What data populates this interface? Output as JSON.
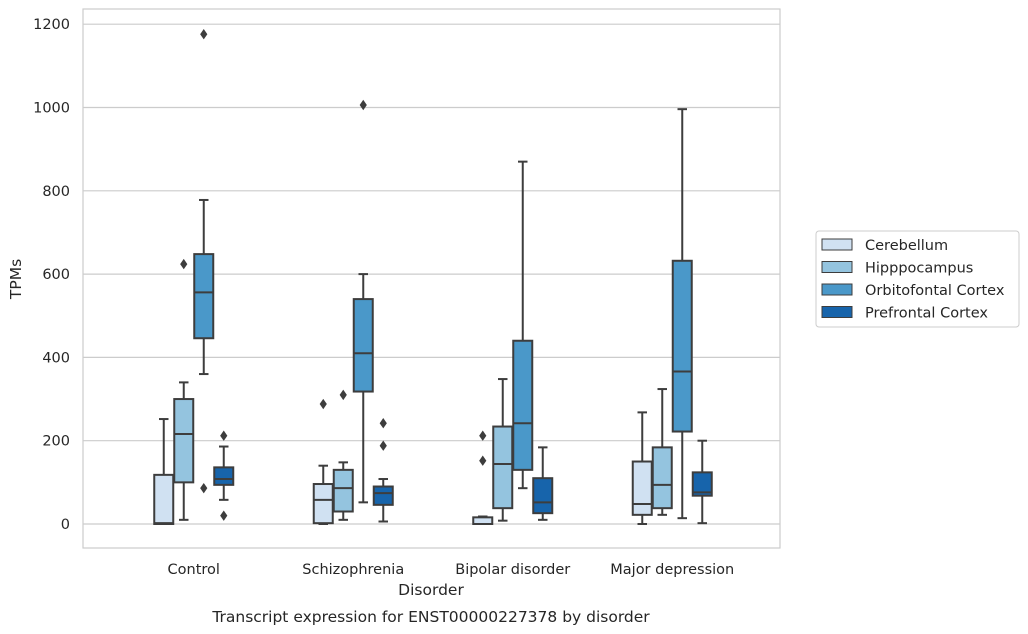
{
  "chart_data": {
    "type": "box",
    "title": "",
    "caption": "Transcript expression for ENST00000227378 by disorder",
    "xlabel": "Disorder",
    "ylabel": "TPMs",
    "ylim": [
      -55,
      1240
    ],
    "yticks": [
      "0",
      "200",
      "400",
      "600",
      "800",
      "1000",
      "1200"
    ],
    "categories": [
      "Control",
      "Schizophrenia",
      "Bipolar disorder",
      "Major depression"
    ],
    "grid": "horizontal",
    "legend_position": "right",
    "series": [
      {
        "name": "Cerebellum",
        "color": "#d0e1f2",
        "boxes": [
          {
            "whisker_low": 0,
            "q1": 0,
            "median": 2,
            "q3": 118,
            "whisker_high": 252,
            "outliers": []
          },
          {
            "whisker_low": 0,
            "q1": 2,
            "median": 58,
            "q3": 96,
            "whisker_high": 140,
            "outliers": [
              288
            ]
          },
          {
            "whisker_low": 0,
            "q1": 0,
            "median": 0,
            "q3": 16,
            "whisker_high": 18,
            "outliers": [
              152,
              212
            ]
          },
          {
            "whisker_low": 0,
            "q1": 22,
            "median": 48,
            "q3": 150,
            "whisker_high": 268,
            "outliers": []
          }
        ]
      },
      {
        "name": "Hipppocampus",
        "color": "#94c4df",
        "boxes": [
          {
            "whisker_low": 10,
            "q1": 100,
            "median": 216,
            "q3": 300,
            "whisker_high": 340,
            "outliers": [
              624
            ]
          },
          {
            "whisker_low": 10,
            "q1": 30,
            "median": 86,
            "q3": 130,
            "whisker_high": 148,
            "outliers": [
              310
            ]
          },
          {
            "whisker_low": 8,
            "q1": 38,
            "median": 144,
            "q3": 234,
            "whisker_high": 348,
            "outliers": []
          },
          {
            "whisker_low": 22,
            "q1": 38,
            "median": 94,
            "q3": 184,
            "whisker_high": 324,
            "outliers": []
          }
        ]
      },
      {
        "name": "Orbitofontal Cortex",
        "color": "#4a98c9",
        "boxes": [
          {
            "whisker_low": 360,
            "q1": 446,
            "median": 556,
            "q3": 648,
            "whisker_high": 778,
            "outliers": [
              86,
              1176
            ]
          },
          {
            "whisker_low": 52,
            "q1": 318,
            "median": 410,
            "q3": 540,
            "whisker_high": 600,
            "outliers": [
              1006
            ]
          },
          {
            "whisker_low": 86,
            "q1": 130,
            "median": 242,
            "q3": 440,
            "whisker_high": 870,
            "outliers": []
          },
          {
            "whisker_low": 14,
            "q1": 222,
            "median": 366,
            "q3": 632,
            "whisker_high": 996,
            "outliers": []
          }
        ]
      },
      {
        "name": "Prefrontal Cortex",
        "color": "#1764ab",
        "boxes": [
          {
            "whisker_low": 58,
            "q1": 94,
            "median": 108,
            "q3": 136,
            "whisker_high": 186,
            "outliers": [
              20,
              212
            ]
          },
          {
            "whisker_low": 6,
            "q1": 46,
            "median": 74,
            "q3": 90,
            "whisker_high": 108,
            "outliers": [
              188,
              242
            ]
          },
          {
            "whisker_low": 10,
            "q1": 26,
            "median": 52,
            "q3": 110,
            "whisker_high": 184,
            "outliers": []
          },
          {
            "whisker_low": 2,
            "q1": 68,
            "median": 76,
            "q3": 124,
            "whisker_high": 200,
            "outliers": []
          }
        ]
      }
    ]
  }
}
